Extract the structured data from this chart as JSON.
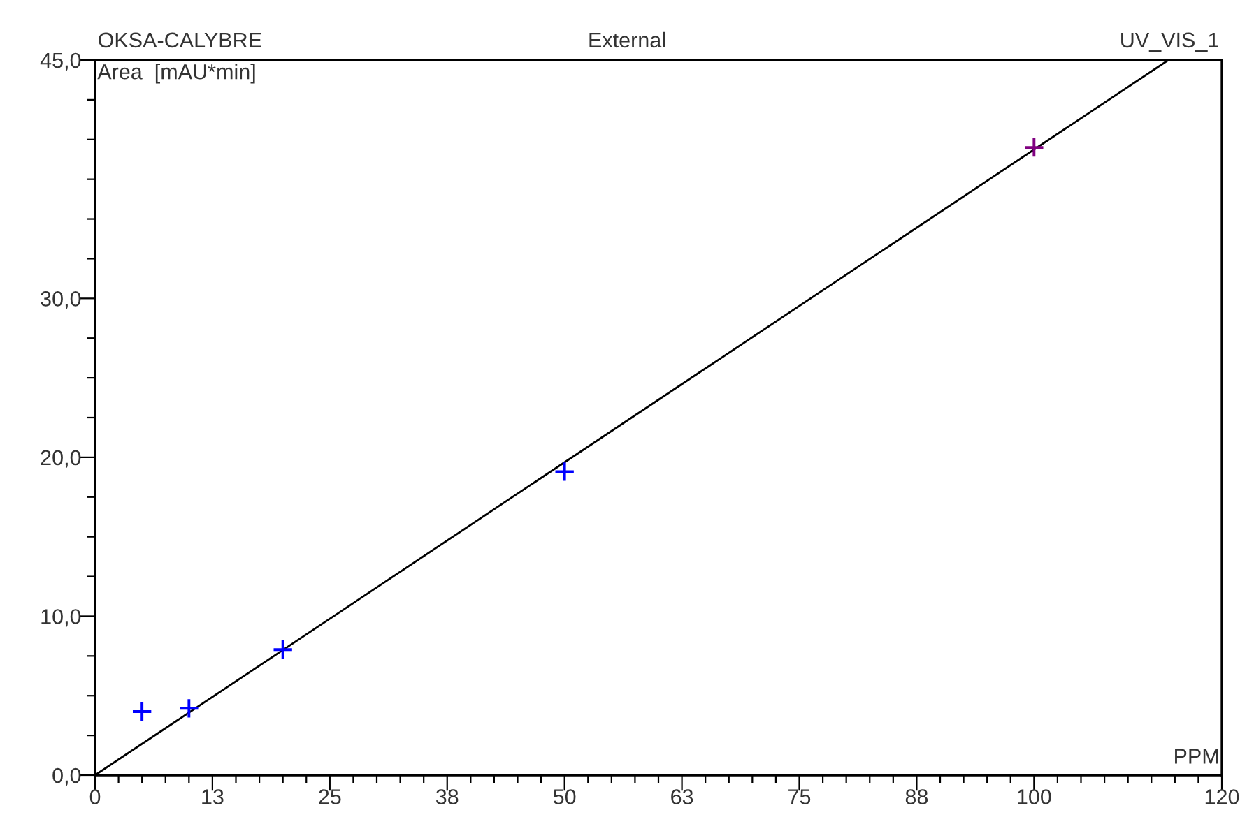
{
  "chart_data": {
    "type": "scatter",
    "title": "External",
    "subtitle": "OKSA-CALYBRE",
    "annotations": [
      "UV_VIS_1"
    ],
    "xlabel": "PPM",
    "ylabel": "Area  [mAU*min]",
    "xlim": [
      0,
      120
    ],
    "ylim": [
      0,
      45
    ],
    "xticks": [
      0,
      {
        "value": 2.5,
        "label": null
      },
      {
        "value": 5,
        "label": null
      },
      {
        "value": 7.5,
        "label": null
      },
      {
        "value": 10,
        "label": null
      },
      {
        "value": 12.5,
        "label": "13"
      },
      {
        "value": 15,
        "label": null
      },
      {
        "value": 17.5,
        "label": null
      },
      {
        "value": 20,
        "label": null
      },
      {
        "value": 22.5,
        "label": null
      },
      25,
      {
        "value": 27.5,
        "label": null
      },
      {
        "value": 30,
        "label": null
      },
      {
        "value": 32.5,
        "label": null
      },
      {
        "value": 35,
        "label": null
      },
      {
        "value": 37.5,
        "label": "38"
      },
      {
        "value": 40,
        "label": null
      },
      {
        "value": 42.5,
        "label": null
      },
      {
        "value": 45,
        "label": null
      },
      {
        "value": 47.5,
        "label": null
      },
      50,
      {
        "value": 52.5,
        "label": null
      },
      {
        "value": 55,
        "label": null
      },
      {
        "value": 57.5,
        "label": null
      },
      {
        "value": 60,
        "label": null
      },
      {
        "value": 62.5,
        "label": "63"
      },
      {
        "value": 65,
        "label": null
      },
      {
        "value": 67.5,
        "label": null
      },
      {
        "value": 70,
        "label": null
      },
      {
        "value": 72.5,
        "label": null
      },
      75,
      {
        "value": 77.5,
        "label": null
      },
      {
        "value": 80,
        "label": null
      },
      {
        "value": 82.5,
        "label": null
      },
      {
        "value": 85,
        "label": null
      },
      {
        "value": 87.5,
        "label": "88"
      },
      {
        "value": 90,
        "label": null
      },
      {
        "value": 92.5,
        "label": null
      },
      {
        "value": 95,
        "label": null
      },
      {
        "value": 97.5,
        "label": null
      },
      100,
      {
        "value": 102.5,
        "label": null
      },
      {
        "value": 105,
        "label": null
      },
      {
        "value": 107.5,
        "label": null
      },
      {
        "value": 110,
        "label": null
      },
      {
        "value": 112.5,
        "label": null
      },
      {
        "value": 115,
        "label": null
      },
      {
        "value": 117.5,
        "label": null
      },
      120
    ],
    "yticks": [
      {
        "value": 0,
        "label": "0,0"
      },
      {
        "value": 2.5,
        "label": null
      },
      {
        "value": 5,
        "label": null
      },
      {
        "value": 7.5,
        "label": null
      },
      {
        "value": 10,
        "label": "10,0"
      },
      {
        "value": 12.5,
        "label": null
      },
      {
        "value": 15,
        "label": null
      },
      {
        "value": 17.5,
        "label": null
      },
      {
        "value": 20,
        "label": "20,0"
      },
      {
        "value": 22.5,
        "label": null
      },
      {
        "value": 25,
        "label": null
      },
      {
        "value": 27.5,
        "label": null
      },
      {
        "value": 30,
        "label": "30,0"
      },
      {
        "value": 32.5,
        "label": null
      },
      {
        "value": 35,
        "label": null
      },
      {
        "value": 37.5,
        "label": null
      },
      {
        "value": 40,
        "label": null
      },
      {
        "value": 42.5,
        "label": null
      },
      {
        "value": 45,
        "label": "45,0"
      }
    ],
    "series": [
      {
        "marker": "cross",
        "x": [
          5,
          10,
          20,
          50,
          100
        ],
        "values": [
          4.0,
          4.2,
          7.9,
          19.1,
          39.5
        ],
        "colors": [
          "#0000ff",
          "#0000ff",
          "#0000ff",
          "#0000ff",
          "#800080"
        ]
      },
      {
        "type": "line",
        "x": [
          0,
          114.3
        ],
        "values": [
          0,
          45
        ],
        "color": "#000000"
      }
    ]
  }
}
